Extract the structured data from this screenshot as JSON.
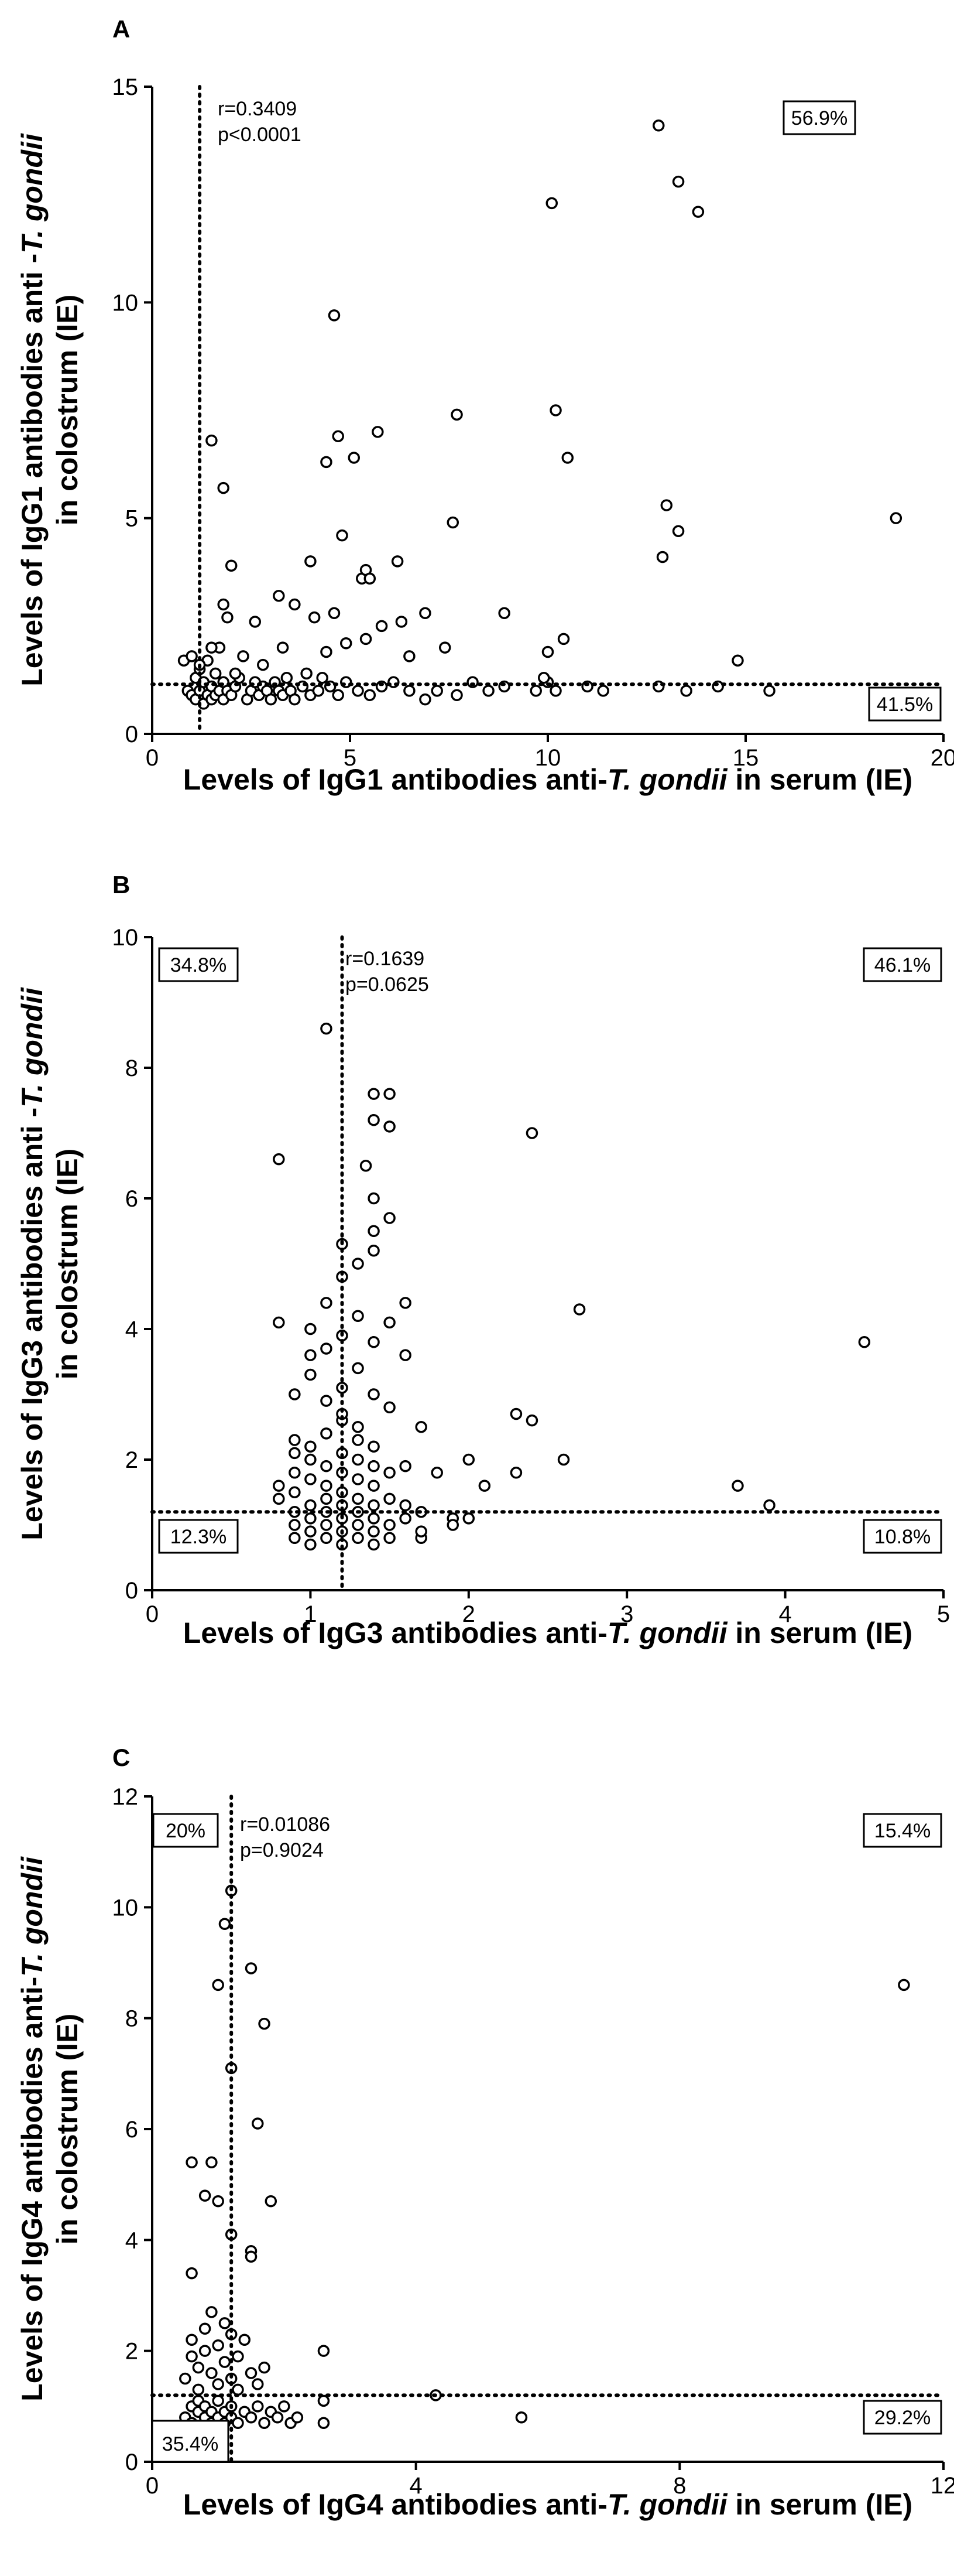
{
  "chart_data": [
    {
      "panel": "A",
      "type": "scatter",
      "xlabel_parts": [
        "Levels of IgG1 antibodies anti-",
        "T. gondii",
        " in serum (IE)"
      ],
      "ylabel_line1_parts": [
        "Levels of IgG1 antibodies anti -",
        "T. gondii"
      ],
      "ylabel_line2": "in colostrum (IE)",
      "xlim": [
        0,
        20
      ],
      "ylim": [
        0,
        15
      ],
      "xticks": [
        0,
        5,
        10,
        15,
        20
      ],
      "yticks": [
        0,
        5,
        10,
        15
      ],
      "threshold_x": 1.2,
      "threshold_y": 1.15,
      "stats": [
        "r=0.3409",
        "p<0.0001"
      ],
      "quadrant_labels": [
        {
          "position": "top-right",
          "text": "56.9%"
        },
        {
          "position": "bottom-right",
          "text": "41.5%"
        }
      ],
      "points": [
        [
          0.9,
          1.0
        ],
        [
          1.0,
          0.9
        ],
        [
          1.1,
          0.8
        ],
        [
          1.1,
          1.3
        ],
        [
          1.2,
          1.0
        ],
        [
          1.2,
          1.5
        ],
        [
          1.3,
          0.7
        ],
        [
          1.3,
          1.2
        ],
        [
          1.4,
          0.9
        ],
        [
          1.4,
          1.7
        ],
        [
          1.5,
          1.1
        ],
        [
          1.5,
          0.8
        ],
        [
          1.6,
          1.4
        ],
        [
          1.6,
          0.9
        ],
        [
          1.7,
          1.0
        ],
        [
          1.7,
          2.0
        ],
        [
          1.8,
          0.8
        ],
        [
          1.8,
          1.2
        ],
        [
          1.9,
          1.0
        ],
        [
          2.0,
          0.9
        ],
        [
          2.1,
          1.1
        ],
        [
          2.2,
          1.3
        ],
        [
          2.4,
          0.8
        ],
        [
          2.5,
          1.0
        ],
        [
          2.6,
          1.2
        ],
        [
          2.7,
          0.9
        ],
        [
          2.8,
          1.1
        ],
        [
          2.9,
          1.0
        ],
        [
          3.0,
          0.8
        ],
        [
          3.1,
          1.2
        ],
        [
          3.2,
          1.0
        ],
        [
          3.3,
          0.9
        ],
        [
          3.4,
          1.3
        ],
        [
          3.5,
          1.0
        ],
        [
          3.6,
          0.8
        ],
        [
          3.8,
          1.1
        ],
        [
          4.0,
          0.9
        ],
        [
          4.2,
          1.0
        ],
        [
          4.3,
          1.3
        ],
        [
          4.5,
          1.1
        ],
        [
          4.7,
          0.9
        ],
        [
          4.9,
          1.2
        ],
        [
          5.2,
          1.0
        ],
        [
          5.5,
          0.9
        ],
        [
          5.8,
          1.1
        ],
        [
          6.1,
          1.2
        ],
        [
          6.5,
          1.0
        ],
        [
          6.9,
          0.8
        ],
        [
          7.2,
          1.0
        ],
        [
          7.7,
          0.9
        ],
        [
          8.1,
          1.2
        ],
        [
          8.5,
          1.0
        ],
        [
          8.9,
          1.1
        ],
        [
          9.7,
          1.0
        ],
        [
          10.0,
          1.2
        ],
        [
          10.2,
          1.0
        ],
        [
          11.0,
          1.1
        ],
        [
          11.4,
          1.0
        ],
        [
          12.8,
          1.1
        ],
        [
          13.5,
          1.0
        ],
        [
          14.3,
          1.1
        ],
        [
          15.6,
          1.0
        ],
        [
          0.8,
          1.7
        ],
        [
          1.0,
          1.8
        ],
        [
          1.2,
          1.6
        ],
        [
          1.5,
          2.0
        ],
        [
          1.9,
          2.7
        ],
        [
          2.0,
          3.9
        ],
        [
          2.1,
          1.4
        ],
        [
          2.3,
          1.8
        ],
        [
          2.6,
          2.6
        ],
        [
          2.8,
          1.6
        ],
        [
          3.2,
          3.2
        ],
        [
          3.3,
          2.0
        ],
        [
          3.6,
          3.0
        ],
        [
          3.9,
          1.4
        ],
        [
          4.1,
          2.7
        ],
        [
          4.4,
          1.9
        ],
        [
          4.6,
          2.8
        ],
        [
          4.9,
          2.1
        ],
        [
          5.3,
          3.6
        ],
        [
          5.4,
          2.2
        ],
        [
          5.8,
          2.5
        ],
        [
          6.3,
          2.6
        ],
        [
          6.5,
          1.8
        ],
        [
          6.9,
          2.8
        ],
        [
          7.4,
          2.0
        ],
        [
          8.9,
          2.8
        ],
        [
          9.9,
          1.3
        ],
        [
          10.0,
          1.9
        ],
        [
          10.4,
          2.2
        ],
        [
          14.8,
          1.7
        ],
        [
          1.5,
          6.8
        ],
        [
          1.8,
          5.7
        ],
        [
          1.8,
          3.0
        ],
        [
          4.0,
          4.0
        ],
        [
          4.4,
          6.3
        ],
        [
          4.7,
          6.9
        ],
        [
          4.8,
          4.6
        ],
        [
          5.1,
          6.4
        ],
        [
          5.4,
          3.8
        ],
        [
          5.5,
          3.6
        ],
        [
          5.7,
          7.0
        ],
        [
          6.2,
          4.0
        ],
        [
          7.6,
          4.9
        ],
        [
          7.7,
          7.4
        ],
        [
          10.2,
          7.5
        ],
        [
          10.5,
          6.4
        ],
        [
          12.9,
          4.1
        ],
        [
          13.0,
          5.3
        ],
        [
          13.3,
          4.7
        ],
        [
          4.6,
          9.7
        ],
        [
          10.1,
          12.3
        ],
        [
          12.8,
          14.1
        ],
        [
          13.3,
          12.8
        ],
        [
          13.8,
          12.1
        ],
        [
          18.8,
          5.0
        ]
      ]
    },
    {
      "panel": "B",
      "type": "scatter",
      "xlabel_parts": [
        "Levels of IgG3 antibodies anti-",
        "T. gondii",
        " in serum (IE)"
      ],
      "ylabel_line1_parts": [
        "Levels of IgG3 antibodies anti -",
        "T. gondii"
      ],
      "ylabel_line2": "in colostrum (IE)",
      "xlim": [
        0,
        5
      ],
      "ylim": [
        0,
        10
      ],
      "xticks": [
        0,
        1,
        2,
        3,
        4,
        5
      ],
      "yticks": [
        0,
        2,
        4,
        6,
        8,
        10
      ],
      "threshold_x": 1.2,
      "threshold_y": 1.2,
      "stats": [
        "r=0.1639",
        "p=0.0625"
      ],
      "quadrant_labels": [
        {
          "position": "top-left",
          "text": "34.8%"
        },
        {
          "position": "top-right",
          "text": "46.1%"
        },
        {
          "position": "bottom-left",
          "text": "12.3%"
        },
        {
          "position": "bottom-right",
          "text": "10.8%"
        }
      ],
      "points": [
        [
          0.8,
          1.4
        ],
        [
          0.8,
          1.6
        ],
        [
          0.9,
          0.8
        ],
        [
          0.9,
          1.0
        ],
        [
          0.9,
          1.2
        ],
        [
          0.9,
          1.5
        ],
        [
          0.9,
          1.8
        ],
        [
          0.9,
          2.1
        ],
        [
          0.9,
          2.3
        ],
        [
          1.0,
          0.7
        ],
        [
          1.0,
          0.9
        ],
        [
          1.0,
          1.1
        ],
        [
          1.0,
          1.3
        ],
        [
          1.0,
          1.7
        ],
        [
          1.0,
          2.0
        ],
        [
          1.0,
          2.2
        ],
        [
          1.1,
          0.8
        ],
        [
          1.1,
          1.0
        ],
        [
          1.1,
          1.2
        ],
        [
          1.1,
          1.4
        ],
        [
          1.1,
          1.6
        ],
        [
          1.1,
          1.9
        ],
        [
          1.1,
          2.4
        ],
        [
          1.2,
          0.7
        ],
        [
          1.2,
          0.9
        ],
        [
          1.2,
          1.1
        ],
        [
          1.2,
          1.3
        ],
        [
          1.2,
          1.5
        ],
        [
          1.2,
          1.8
        ],
        [
          1.2,
          2.1
        ],
        [
          1.2,
          2.6
        ],
        [
          1.3,
          0.8
        ],
        [
          1.3,
          1.0
        ],
        [
          1.3,
          1.2
        ],
        [
          1.3,
          1.4
        ],
        [
          1.3,
          1.7
        ],
        [
          1.3,
          2.0
        ],
        [
          1.3,
          2.3
        ],
        [
          1.4,
          0.7
        ],
        [
          1.4,
          0.9
        ],
        [
          1.4,
          1.1
        ],
        [
          1.4,
          1.3
        ],
        [
          1.4,
          1.6
        ],
        [
          1.4,
          1.9
        ],
        [
          1.4,
          2.2
        ],
        [
          1.5,
          0.8
        ],
        [
          1.5,
          1.0
        ],
        [
          1.5,
          1.4
        ],
        [
          1.5,
          1.8
        ],
        [
          1.6,
          1.1
        ],
        [
          1.6,
          1.3
        ],
        [
          1.7,
          0.8
        ],
        [
          1.7,
          0.9
        ],
        [
          1.7,
          1.2
        ],
        [
          0.8,
          4.1
        ],
        [
          0.9,
          3.0
        ],
        [
          1.0,
          3.3
        ],
        [
          1.0,
          3.6
        ],
        [
          1.0,
          4.0
        ],
        [
          1.1,
          2.9
        ],
        [
          1.1,
          3.7
        ],
        [
          1.1,
          4.4
        ],
        [
          1.2,
          2.7
        ],
        [
          1.2,
          3.1
        ],
        [
          1.2,
          3.9
        ],
        [
          1.2,
          4.8
        ],
        [
          1.3,
          2.5
        ],
        [
          1.3,
          3.4
        ],
        [
          1.3,
          4.2
        ],
        [
          1.3,
          5.0
        ],
        [
          1.4,
          3.0
        ],
        [
          1.4,
          3.8
        ],
        [
          1.4,
          5.2
        ],
        [
          1.4,
          5.5
        ],
        [
          1.5,
          2.8
        ],
        [
          1.5,
          4.1
        ],
        [
          1.5,
          5.7
        ],
        [
          1.6,
          3.6
        ],
        [
          1.6,
          4.4
        ],
        [
          1.7,
          2.5
        ],
        [
          1.6,
          1.9
        ],
        [
          1.8,
          1.8
        ],
        [
          1.9,
          1.1
        ],
        [
          1.9,
          1.0
        ],
        [
          2.0,
          2.0
        ],
        [
          2.0,
          1.1
        ],
        [
          2.1,
          1.6
        ],
        [
          2.3,
          2.7
        ],
        [
          2.3,
          1.8
        ],
        [
          2.4,
          2.6
        ],
        [
          2.6,
          2.0
        ],
        [
          3.7,
          1.6
        ],
        [
          3.9,
          1.3
        ],
        [
          2.7,
          4.3
        ],
        [
          4.5,
          3.8
        ],
        [
          0.8,
          6.6
        ],
        [
          1.1,
          8.6
        ],
        [
          1.35,
          6.5
        ],
        [
          1.4,
          7.6
        ],
        [
          1.4,
          7.2
        ],
        [
          1.5,
          7.6
        ],
        [
          1.5,
          7.1
        ],
        [
          1.4,
          6.0
        ],
        [
          2.4,
          7.0
        ],
        [
          1.2,
          5.3
        ]
      ]
    },
    {
      "panel": "C",
      "type": "scatter",
      "xlabel_parts": [
        "Levels of IgG4 antibodies anti-",
        "T. gondii",
        " in serum (IE)"
      ],
      "ylabel_line1_parts": [
        "Levels of IgG4 antibodies anti-",
        "T. gondii"
      ],
      "ylabel_line2": "in colostrum (IE)",
      "xlim": [
        0,
        12
      ],
      "ylim": [
        0,
        12
      ],
      "xticks": [
        0,
        4,
        8,
        12
      ],
      "yticks": [
        0,
        2,
        4,
        6,
        8,
        10,
        12
      ],
      "threshold_x": 1.2,
      "threshold_y": 1.2,
      "stats": [
        "r=0.01086",
        "p=0.9024"
      ],
      "quadrant_labels": [
        {
          "position": "top-left",
          "text": "20%"
        },
        {
          "position": "top-right",
          "text": "15.4%"
        },
        {
          "position": "bottom-left",
          "text": "35.4%"
        },
        {
          "position": "bottom-right",
          "text": "29.2%"
        }
      ],
      "points": [
        [
          0.5,
          0.8
        ],
        [
          0.6,
          1.0
        ],
        [
          0.6,
          0.7
        ],
        [
          0.7,
          0.9
        ],
        [
          0.7,
          1.1
        ],
        [
          0.8,
          0.8
        ],
        [
          0.8,
          1.0
        ],
        [
          0.9,
          0.7
        ],
        [
          0.9,
          0.9
        ],
        [
          1.0,
          0.8
        ],
        [
          1.0,
          1.1
        ],
        [
          1.1,
          0.7
        ],
        [
          1.1,
          0.9
        ],
        [
          1.2,
          0.8
        ],
        [
          1.2,
          1.0
        ],
        [
          1.3,
          0.7
        ],
        [
          1.4,
          0.9
        ],
        [
          1.5,
          0.8
        ],
        [
          1.6,
          1.0
        ],
        [
          1.7,
          0.7
        ],
        [
          1.8,
          0.9
        ],
        [
          1.9,
          0.8
        ],
        [
          2.0,
          1.0
        ],
        [
          2.1,
          0.7
        ],
        [
          2.2,
          0.8
        ],
        [
          2.6,
          0.7
        ],
        [
          2.6,
          1.1
        ],
        [
          4.3,
          1.2
        ],
        [
          5.6,
          0.8
        ],
        [
          0.5,
          1.5
        ],
        [
          0.6,
          1.9
        ],
        [
          0.6,
          2.2
        ],
        [
          0.7,
          1.3
        ],
        [
          0.7,
          1.7
        ],
        [
          0.8,
          2.0
        ],
        [
          0.8,
          2.4
        ],
        [
          0.9,
          1.6
        ],
        [
          0.9,
          2.7
        ],
        [
          1.0,
          1.4
        ],
        [
          1.0,
          2.1
        ],
        [
          1.1,
          1.8
        ],
        [
          1.1,
          2.5
        ],
        [
          1.2,
          1.5
        ],
        [
          1.2,
          2.3
        ],
        [
          1.3,
          1.3
        ],
        [
          1.3,
          1.9
        ],
        [
          1.4,
          2.2
        ],
        [
          1.5,
          1.6
        ],
        [
          1.6,
          1.4
        ],
        [
          1.7,
          1.7
        ],
        [
          2.6,
          2.0
        ],
        [
          0.6,
          3.4
        ],
        [
          0.6,
          5.4
        ],
        [
          0.8,
          4.8
        ],
        [
          0.9,
          5.4
        ],
        [
          1.0,
          4.7
        ],
        [
          1.2,
          4.1
        ],
        [
          1.2,
          10.3
        ],
        [
          1.1,
          9.7
        ],
        [
          1.0,
          8.6
        ],
        [
          1.2,
          7.1
        ],
        [
          1.5,
          8.9
        ],
        [
          1.7,
          7.9
        ],
        [
          1.6,
          6.1
        ],
        [
          1.5,
          3.8
        ],
        [
          1.5,
          3.7
        ],
        [
          1.8,
          4.7
        ],
        [
          11.4,
          8.6
        ]
      ]
    }
  ]
}
